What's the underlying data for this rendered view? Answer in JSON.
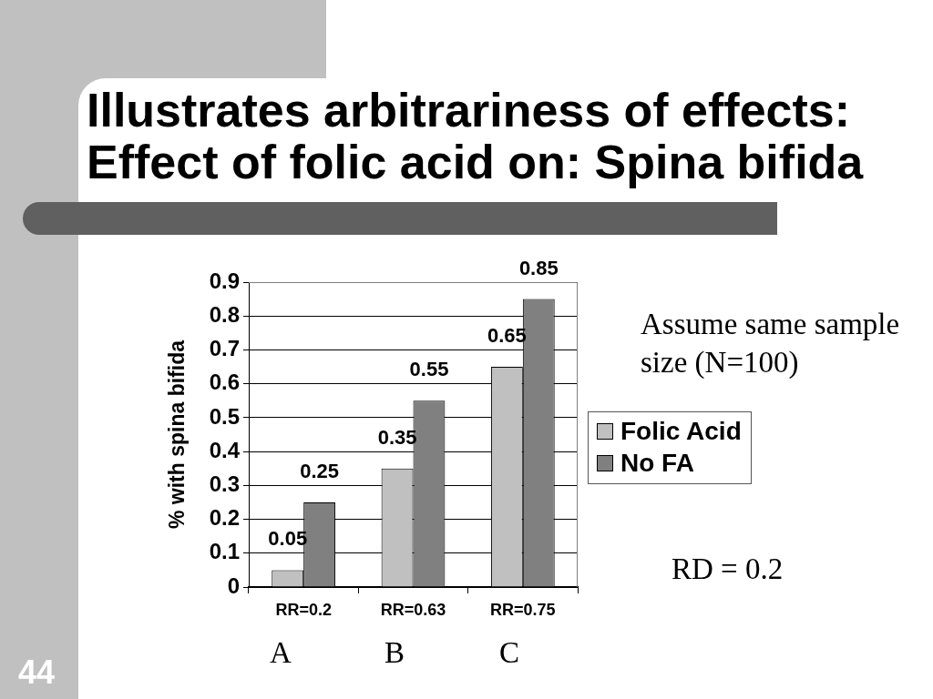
{
  "chart_data": {
    "type": "bar",
    "title": "Illustrates arbitrariness of effects:",
    "subtitle": "Effect of folic acid on: Spina bifida",
    "ylabel": "% with spina bifida",
    "categories": [
      "RR=0.2",
      "RR=0.63",
      "RR=0.75"
    ],
    "series": [
      {
        "name": "Folic Acid",
        "color": "#c0c0c0",
        "values": [
          0.05,
          0.35,
          0.65
        ]
      },
      {
        "name": "No FA",
        "color": "#808080",
        "values": [
          0.25,
          0.55,
          0.85
        ]
      }
    ],
    "ylim": [
      0,
      0.9
    ],
    "yticks": [
      0,
      0.1,
      0.2,
      0.3,
      0.4,
      0.5,
      0.6,
      0.7,
      0.8,
      0.9
    ],
    "grid": "y",
    "legend": "right",
    "data_labels": true,
    "annotations": [
      "Assume same sample size (N=100)",
      "RD = 0.2",
      "A",
      "B",
      "C",
      "44"
    ]
  }
}
